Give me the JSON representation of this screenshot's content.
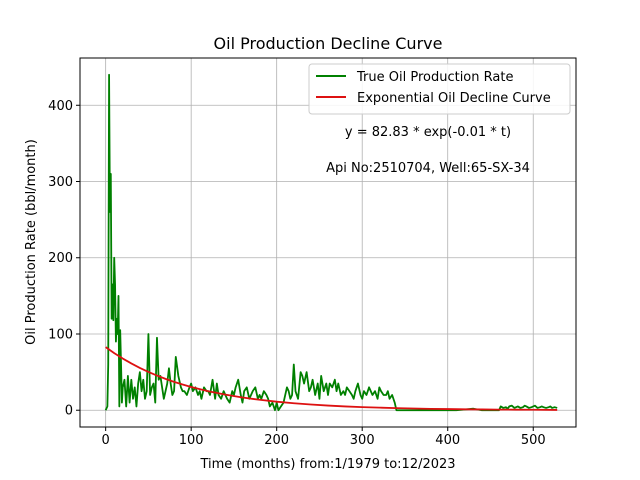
{
  "chart_data": {
    "type": "line",
    "title": "Oil Production Decline Curve",
    "xlabel": "Time (months) from:1/1979 to:12/2023",
    "ylabel": "Oil Production Rate (bbl/month)",
    "xlim": [
      -30,
      550
    ],
    "ylim": [
      -22,
      462
    ],
    "xticks": [
      0,
      100,
      200,
      300,
      400,
      500
    ],
    "yticks": [
      0,
      100,
      200,
      300,
      400
    ],
    "grid": true,
    "legend_position": "top-right",
    "annotations": [
      "y = 82.83 * exp(-0.01 * t)",
      "Api No:2510704, Well:65-SX-34"
    ],
    "series": [
      {
        "name": "True Oil Production Rate",
        "color": "#008000",
        "x": [
          0,
          2,
          3,
          4,
          5,
          6,
          7,
          8,
          9,
          10,
          11,
          12,
          13,
          14,
          15,
          16,
          17,
          18,
          19,
          20,
          22,
          24,
          26,
          28,
          30,
          32,
          34,
          36,
          38,
          40,
          42,
          44,
          46,
          48,
          50,
          52,
          54,
          56,
          58,
          60,
          62,
          64,
          66,
          68,
          70,
          72,
          74,
          76,
          78,
          80,
          82,
          85,
          88,
          90,
          92,
          95,
          98,
          100,
          102,
          105,
          108,
          110,
          112,
          115,
          118,
          120,
          122,
          125,
          128,
          130,
          132,
          135,
          138,
          140,
          142,
          145,
          148,
          150,
          152,
          155,
          158,
          160,
          162,
          165,
          168,
          170,
          172,
          175,
          178,
          180,
          182,
          185,
          188,
          190,
          192,
          195,
          198,
          200,
          202,
          205,
          208,
          210,
          212,
          214,
          216,
          218,
          220,
          222,
          225,
          228,
          230,
          232,
          235,
          238,
          240,
          242,
          245,
          248,
          250,
          252,
          255,
          258,
          260,
          262,
          265,
          268,
          270,
          272,
          275,
          278,
          280,
          282,
          285,
          288,
          290,
          292,
          295,
          298,
          300,
          302,
          305,
          308,
          310,
          312,
          315,
          318,
          320,
          322,
          325,
          328,
          330,
          332,
          335,
          338,
          340,
          350,
          360,
          370,
          380,
          390,
          400,
          410,
          420,
          430,
          440,
          450,
          460,
          462,
          465,
          468,
          470,
          472,
          475,
          478,
          480,
          482,
          485,
          488,
          490,
          492,
          495,
          498,
          500,
          502,
          505,
          508,
          510,
          512,
          515,
          518,
          520,
          522,
          525,
          528
        ],
        "y": [
          0,
          5,
          60,
          440,
          260,
          310,
          120,
          165,
          118,
          200,
          165,
          90,
          120,
          100,
          150,
          5,
          105,
          60,
          10,
          30,
          40,
          5,
          45,
          10,
          40,
          15,
          30,
          5,
          35,
          50,
          25,
          40,
          15,
          25,
          100,
          20,
          30,
          35,
          10,
          95,
          40,
          45,
          30,
          15,
          25,
          35,
          55,
          35,
          20,
          25,
          70,
          45,
          30,
          25,
          25,
          20,
          30,
          35,
          25,
          30,
          20,
          25,
          15,
          30,
          25,
          25,
          20,
          40,
          15,
          35,
          20,
          15,
          25,
          20,
          15,
          10,
          25,
          20,
          30,
          40,
          20,
          10,
          25,
          30,
          15,
          20,
          25,
          30,
          15,
          20,
          15,
          25,
          20,
          15,
          5,
          10,
          0,
          10,
          0,
          5,
          10,
          20,
          30,
          25,
          15,
          20,
          60,
          25,
          15,
          50,
          45,
          35,
          50,
          25,
          30,
          40,
          20,
          35,
          15,
          45,
          25,
          35,
          20,
          35,
          30,
          40,
          25,
          35,
          20,
          25,
          20,
          30,
          25,
          20,
          15,
          25,
          35,
          20,
          15,
          25,
          20,
          30,
          25,
          20,
          25,
          15,
          30,
          25,
          20,
          20,
          25,
          15,
          20,
          10,
          0,
          0,
          0,
          0,
          0,
          0,
          0,
          0,
          1,
          2,
          0,
          0,
          0,
          5,
          3,
          4,
          2,
          5,
          6,
          3,
          4,
          5,
          3,
          4,
          6,
          5,
          3,
          4,
          5,
          6,
          3,
          4,
          5,
          4,
          3,
          4,
          5,
          3,
          4,
          3
        ]
      },
      {
        "name": "Exponential Oil Decline Curve",
        "color": "#dd1111",
        "equation": {
          "a": 82.83,
          "b": 0.01
        },
        "x": [
          0,
          10,
          20,
          30,
          40,
          50,
          60,
          70,
          80,
          90,
          100,
          120,
          140,
          160,
          180,
          200,
          220,
          240,
          260,
          280,
          300,
          320,
          340,
          360,
          380,
          400,
          420,
          440,
          460,
          480,
          500,
          528
        ],
        "y": [
          82.83,
          74.9,
          67.8,
          61.4,
          55.5,
          50.2,
          45.5,
          41.1,
          37.2,
          33.7,
          30.5,
          24.9,
          20.4,
          16.7,
          13.7,
          11.2,
          9.2,
          7.5,
          6.1,
          5.0,
          4.1,
          3.4,
          2.8,
          2.3,
          1.8,
          1.5,
          1.2,
          1.0,
          0.8,
          0.7,
          0.6,
          0.4
        ]
      }
    ]
  }
}
